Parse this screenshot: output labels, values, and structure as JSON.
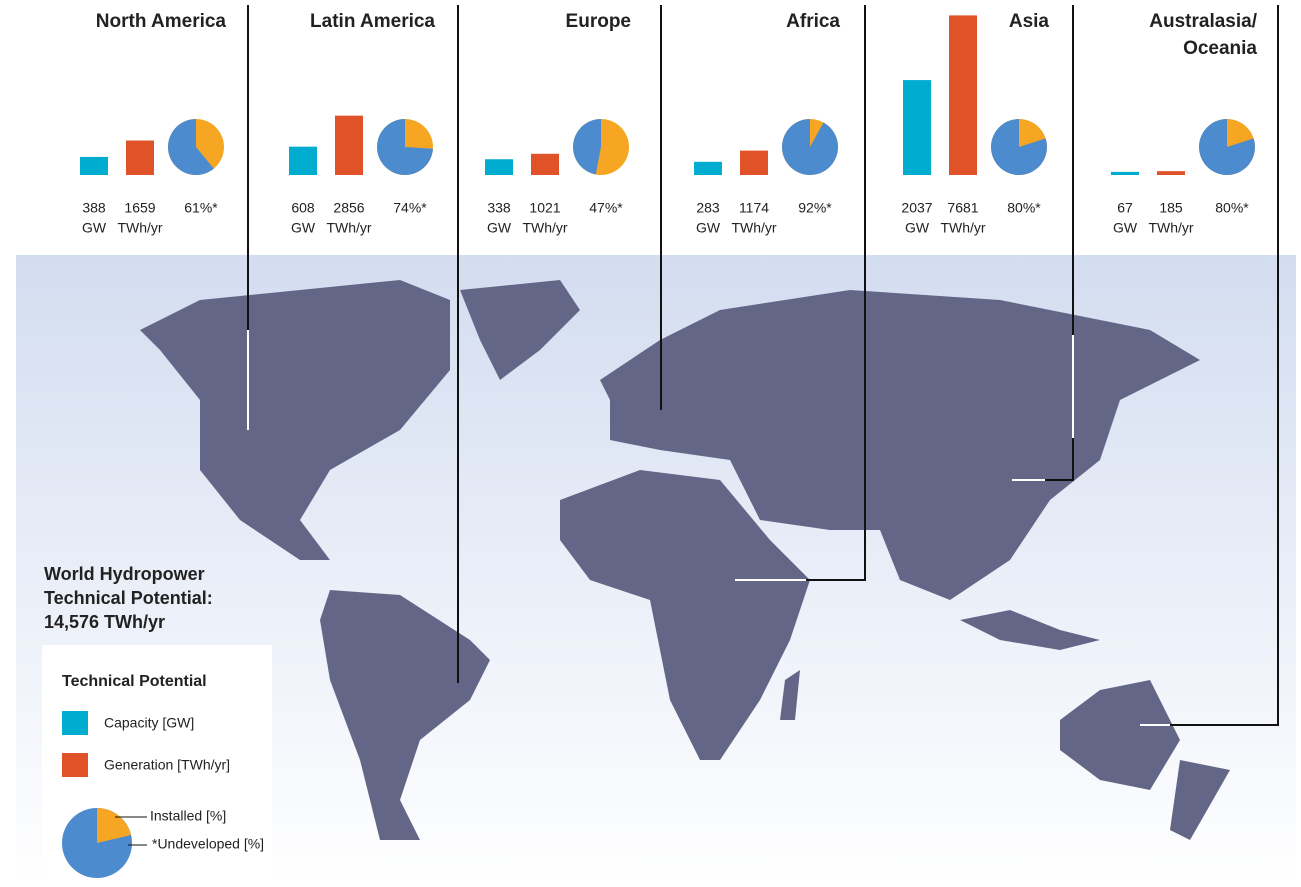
{
  "regions": [
    {
      "name": "North America",
      "capacity": 388,
      "generation": 1659,
      "undeveloped": 61,
      "undeveloped_label": "61%*"
    },
    {
      "name": "Latin America",
      "capacity": 608,
      "generation": 2856,
      "undeveloped": 74,
      "undeveloped_label": "74%*"
    },
    {
      "name": "Europe",
      "capacity": 338,
      "generation": 1021,
      "undeveloped": 47,
      "undeveloped_label": "47%*"
    },
    {
      "name": "Africa",
      "capacity": 283,
      "generation": 1174,
      "undeveloped": 92,
      "undeveloped_label": "92%*"
    },
    {
      "name": "Asia",
      "capacity": 2037,
      "generation": 7681,
      "undeveloped": 80,
      "undeveloped_label": "80%*"
    },
    {
      "name": "Australasia/\nOceania",
      "capacity": 67,
      "generation": 185,
      "undeveloped": 80,
      "undeveloped_label": "80%*"
    }
  ],
  "capacity_unit": "GW",
  "generation_unit": "TWh/yr",
  "colors": {
    "capacity": "#00acd0",
    "generation": "#e05228",
    "undeveloped": "#4b8bce",
    "installed": "#f6a623"
  },
  "total": {
    "title": "World Hydropower\nTechnical Potential:",
    "value": "14,576 TWh/yr"
  },
  "legend": {
    "title": "Technical Potential",
    "capacity": "Capacity [GW]",
    "generation": "Generation [TWh/yr]",
    "installed": "Installed [%]",
    "undeveloped": "*Undeveloped [%]"
  }
}
